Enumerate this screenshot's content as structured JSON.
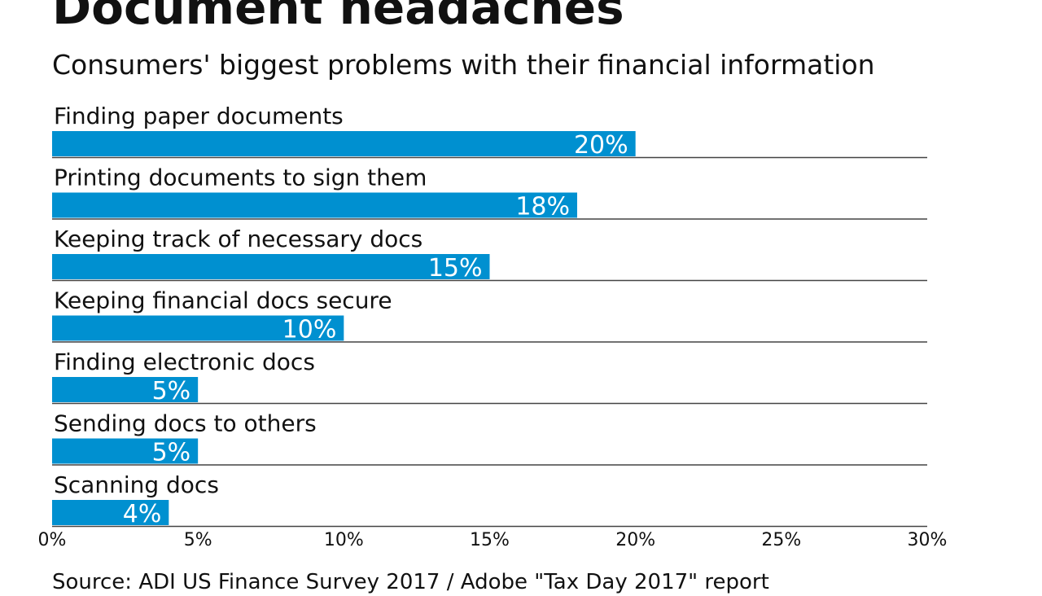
{
  "header": {
    "title": "Document headaches",
    "subtitle": "Consumers' biggest problems with their financial information"
  },
  "footer": {
    "source": "Source: ADI US Finance Survey 2017 / Adobe \"Tax Day 2017\" report"
  },
  "colors": {
    "bar": "#0090d0",
    "divider": "#444444",
    "text": "#111111",
    "value_text": "#ffffff"
  },
  "chart_data": {
    "type": "bar",
    "orientation": "horizontal",
    "title": "Document headaches",
    "subtitle": "Consumers' biggest problems with their financial information",
    "categories": [
      "Finding paper documents",
      "Printing documents to sign them",
      "Keeping track of necessary docs",
      "Keeping financial docs secure",
      "Finding electronic docs",
      "Sending docs to others",
      "Scanning docs"
    ],
    "values": [
      20,
      18,
      15,
      10,
      5,
      5,
      4
    ],
    "value_labels": [
      "20%",
      "18%",
      "15%",
      "10%",
      "5%",
      "5%",
      "4%"
    ],
    "xlim": [
      0,
      30
    ],
    "xticks": [
      0,
      5,
      10,
      15,
      20,
      25,
      30
    ],
    "xtick_labels": [
      "0%",
      "5%",
      "10%",
      "15%",
      "20%",
      "25%",
      "30%"
    ],
    "xlabel": "",
    "ylabel": "",
    "grid": false,
    "legend": "none"
  }
}
